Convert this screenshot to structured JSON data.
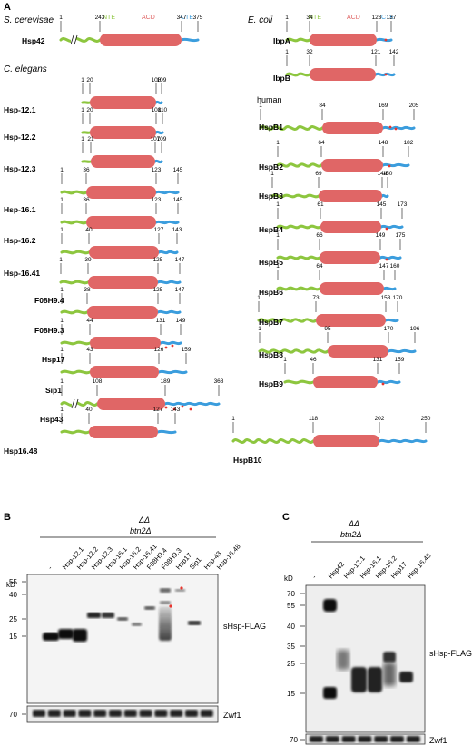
{
  "colors": {
    "nte": "#8dc63f",
    "acd": "#e06666",
    "cte": "#3b9ddd",
    "red_dot": "#e8352e"
  },
  "panel_a": {
    "label": "A",
    "legend": {
      "nte": "NTE",
      "acd": "ACD",
      "cte": "CTE"
    },
    "headers": {
      "s_cerevisiae": "S. cerevisae",
      "c_elegans": "C. elegans",
      "e_coli": "E. coli",
      "human": "human"
    },
    "left": [
      {
        "name": "Hsp42",
        "ticks": [
          "1",
          "243",
          "347",
          "375"
        ]
      },
      {
        "name": "Hsp-12.1",
        "ticks": [
          "1",
          "20",
          "108",
          "109"
        ]
      },
      {
        "name": "Hsp-12.2",
        "ticks": [
          "1",
          "20",
          "108",
          "110"
        ]
      },
      {
        "name": "Hsp-12.3",
        "ticks": [
          "1",
          "21",
          "107",
          "109"
        ]
      },
      {
        "name": "Hsp-16.1",
        "ticks": [
          "1",
          "36",
          "123",
          "145"
        ]
      },
      {
        "name": "Hsp-16.2",
        "ticks": [
          "1",
          "36",
          "123",
          "145"
        ]
      },
      {
        "name": "Hsp-16.41",
        "ticks": [
          "1",
          "40",
          "127",
          "143"
        ]
      },
      {
        "name": "F08H9.4",
        "ticks": [
          "1",
          "39",
          "125",
          "147"
        ]
      },
      {
        "name": "F08H9.3",
        "ticks": [
          "1",
          "38",
          "125",
          "147"
        ]
      },
      {
        "name": "Hsp17",
        "ticks": [
          "1",
          "44",
          "131",
          "149"
        ]
      },
      {
        "name": "Sip1",
        "ticks": [
          "1",
          "43",
          "126",
          "159"
        ]
      },
      {
        "name": "Hsp43",
        "ticks": [
          "1",
          "108",
          "189",
          "368"
        ]
      },
      {
        "name": "Hsp16.48",
        "ticks": [
          "1",
          "40",
          "127",
          "143"
        ]
      }
    ],
    "right": [
      {
        "name": "IbpA",
        "ticks": [
          "1",
          "34",
          "123",
          "137"
        ]
      },
      {
        "name": "IbpB",
        "ticks": [
          "1",
          "32",
          "121",
          "142"
        ]
      },
      {
        "name": "HspB1",
        "ticks": [
          "1",
          "84",
          "169",
          "205"
        ]
      },
      {
        "name": "HspB2",
        "ticks": [
          "1",
          "64",
          "148",
          "182"
        ]
      },
      {
        "name": "HspB3",
        "ticks": [
          "1",
          "69",
          "144",
          "150"
        ]
      },
      {
        "name": "HspB4",
        "ticks": [
          "1",
          "61",
          "145",
          "173"
        ]
      },
      {
        "name": "HspB5",
        "ticks": [
          "1",
          "66",
          "149",
          "175"
        ]
      },
      {
        "name": "HspB6",
        "ticks": [
          "1",
          "64",
          "147",
          "160"
        ]
      },
      {
        "name": "HspB7",
        "ticks": [
          "1",
          "73",
          "153",
          "170"
        ]
      },
      {
        "name": "HspB8",
        "ticks": [
          "1",
          "95",
          "170",
          "196"
        ]
      },
      {
        "name": "HspB9",
        "ticks": [
          "1",
          "46",
          "131",
          "159"
        ]
      },
      {
        "name": "HspB10",
        "ticks": [
          "1",
          "118",
          "202",
          "250"
        ]
      }
    ]
  },
  "panel_b": {
    "label": "B",
    "strain": [
      "ΔΔ",
      "btn2Δ"
    ],
    "lanes": [
      "-",
      "Hsp-12.1",
      "Hsp-12.2",
      "Hsp-12.3",
      "Hsp-16.1",
      "Hsp-16.2",
      "Hsp-16.41",
      "F08H9.4",
      "F08H9.3",
      "Hsp17",
      "Sip1",
      "Hsp-43",
      "Hsp-16.48"
    ],
    "kd_label": "kD",
    "markers": [
      "55",
      "40",
      "25",
      "15"
    ],
    "control_marker": "70",
    "blot_label": "sHsp-FLAG",
    "loading_label": "Zwf1"
  },
  "panel_c": {
    "label": "C",
    "strain": [
      "ΔΔ",
      "btn2Δ"
    ],
    "lanes": [
      "-",
      "Hsp42",
      "Hsp-12.1",
      "Hsp-16.1",
      "Hsp-16.2",
      "Hsp17",
      "Hsp-16.48"
    ],
    "kd_label": "kD",
    "markers": [
      "70",
      "55",
      "40",
      "35",
      "25",
      "15"
    ],
    "control_marker": "70",
    "blot_label": "sHsp-FLAG",
    "loading_label": "Zwf1"
  }
}
